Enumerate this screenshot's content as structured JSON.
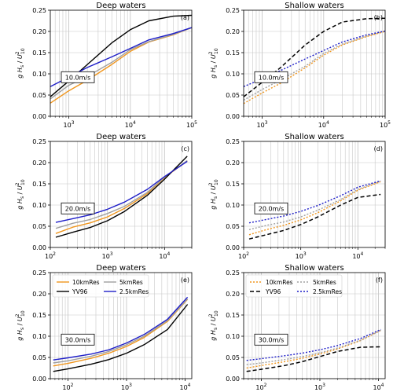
{
  "figure": {
    "legend_labels": {
      "res10": "10kmRes",
      "res5": "5kmRes",
      "yv96": "YV96",
      "res2_5": "2.5kmRes"
    },
    "colors": {
      "res10": "#f0961e",
      "res5": "#a0a0a0",
      "yv96": "#000000",
      "res2_5": "#1e1ec8",
      "grid": "#c8c8c8"
    }
  },
  "chart_data": [
    {
      "type": "line",
      "id": "a",
      "title": "Deep waters",
      "panel_label": "(a)",
      "annotation": "10.0m/s",
      "ylabel": "g H_s / U_10^2",
      "xlabel": "",
      "xscale": "log",
      "xlim": [
        500,
        100000
      ],
      "ylim": [
        0,
        0.25
      ],
      "yticks": [
        0,
        0.05,
        0.1,
        0.15,
        0.2,
        0.25
      ],
      "xticks": [
        1000,
        10000,
        100000
      ],
      "linestyle": "solid",
      "legend": false,
      "grid": true,
      "x": [
        500,
        1000,
        2000,
        5000,
        10000,
        20000,
        50000,
        100000
      ],
      "series": [
        {
          "name": "10kmRes",
          "key": "res10",
          "values": [
            0.031,
            0.06,
            0.085,
            0.122,
            0.153,
            0.175,
            0.192,
            0.209
          ]
        },
        {
          "name": "5kmRes",
          "key": "res5",
          "values": [
            0.041,
            0.073,
            0.094,
            0.127,
            0.157,
            0.176,
            0.193,
            0.209
          ]
        },
        {
          "name": "YV96",
          "key": "yv96",
          "values": [
            0.046,
            0.083,
            0.122,
            0.173,
            0.204,
            0.225,
            0.236,
            0.238
          ]
        },
        {
          "name": "2.5kmRes",
          "key": "res2_5",
          "values": [
            0.07,
            0.092,
            0.115,
            0.14,
            0.16,
            0.18,
            0.195,
            0.209
          ]
        }
      ]
    },
    {
      "type": "line",
      "id": "b",
      "title": "Shallow waters",
      "panel_label": "(b)",
      "annotation": "10.0m/s",
      "ylabel": "g H_s / U_10^2",
      "xlabel": "",
      "xscale": "log",
      "xlim": [
        500,
        100000
      ],
      "ylim": [
        0,
        0.25
      ],
      "yticks": [
        0,
        0.05,
        0.1,
        0.15,
        0.2,
        0.25
      ],
      "xticks": [
        1000,
        10000,
        100000
      ],
      "linestyle": "dashed",
      "legend": false,
      "grid": true,
      "x": [
        500,
        1000,
        2000,
        5000,
        10000,
        20000,
        50000,
        100000
      ],
      "series": [
        {
          "name": "10kmRes",
          "key": "res10",
          "values": [
            0.03,
            0.055,
            0.078,
            0.114,
            0.144,
            0.168,
            0.188,
            0.2
          ]
        },
        {
          "name": "5kmRes",
          "key": "res5",
          "values": [
            0.038,
            0.063,
            0.086,
            0.118,
            0.148,
            0.17,
            0.189,
            0.201
          ]
        },
        {
          "name": "YV96",
          "key": "yv96",
          "values": [
            0.046,
            0.08,
            0.115,
            0.168,
            0.2,
            0.222,
            0.23,
            0.231
          ]
        },
        {
          "name": "2.5kmRes",
          "key": "res2_5",
          "values": [
            0.07,
            0.088,
            0.108,
            0.135,
            0.155,
            0.175,
            0.192,
            0.201
          ]
        }
      ]
    },
    {
      "type": "line",
      "id": "c",
      "title": "Deep waters",
      "panel_label": "(c)",
      "annotation": "20.0m/s",
      "ylabel": "g H_s / U_10^2",
      "xlabel": "",
      "xscale": "log",
      "xlim": [
        100,
        30000
      ],
      "ylim": [
        0,
        0.25
      ],
      "yticks": [
        0,
        0.05,
        0.1,
        0.15,
        0.2,
        0.25
      ],
      "xticks": [
        100,
        1000,
        10000
      ],
      "linestyle": "solid",
      "legend": false,
      "grid": true,
      "x": [
        125,
        250,
        500,
        1000,
        2000,
        5000,
        10000,
        25000
      ],
      "series": [
        {
          "name": "10kmRes",
          "key": "res10",
          "values": [
            0.033,
            0.048,
            0.058,
            0.072,
            0.092,
            0.127,
            0.165,
            0.204
          ]
        },
        {
          "name": "5kmRes",
          "key": "res5",
          "values": [
            0.045,
            0.057,
            0.066,
            0.08,
            0.097,
            0.13,
            0.166,
            0.205
          ]
        },
        {
          "name": "YV96",
          "key": "yv96",
          "values": [
            0.024,
            0.036,
            0.047,
            0.063,
            0.085,
            0.123,
            0.161,
            0.215
          ]
        },
        {
          "name": "2.5kmRes",
          "key": "res2_5",
          "values": [
            0.059,
            0.068,
            0.077,
            0.09,
            0.107,
            0.137,
            0.167,
            0.203
          ]
        }
      ]
    },
    {
      "type": "line",
      "id": "d",
      "title": "Shallow waters",
      "panel_label": "(d)",
      "annotation": "20.0m/s",
      "ylabel": "g H_s / U_10^2",
      "xlabel": "",
      "xscale": "log",
      "xlim": [
        100,
        30000
      ],
      "ylim": [
        0,
        0.25
      ],
      "yticks": [
        0,
        0.05,
        0.1,
        0.15,
        0.2,
        0.25
      ],
      "xticks": [
        100,
        1000,
        10000
      ],
      "linestyle": "dashed",
      "legend": false,
      "grid": true,
      "x": [
        125,
        250,
        500,
        1000,
        2000,
        5000,
        10000,
        25000
      ],
      "series": [
        {
          "name": "10kmRes",
          "key": "res10",
          "values": [
            0.03,
            0.042,
            0.052,
            0.065,
            0.082,
            0.11,
            0.135,
            0.155
          ]
        },
        {
          "name": "5kmRes",
          "key": "res5",
          "values": [
            0.042,
            0.052,
            0.06,
            0.072,
            0.088,
            0.113,
            0.137,
            0.156
          ]
        },
        {
          "name": "YV96",
          "key": "yv96",
          "values": [
            0.02,
            0.03,
            0.04,
            0.054,
            0.072,
            0.1,
            0.118,
            0.125
          ]
        },
        {
          "name": "2.5kmRes",
          "key": "res2_5",
          "values": [
            0.058,
            0.066,
            0.074,
            0.085,
            0.099,
            0.122,
            0.142,
            0.157
          ]
        }
      ]
    },
    {
      "type": "line",
      "id": "e",
      "title": "Deep waters",
      "panel_label": "(e)",
      "annotation": "30.0m/s",
      "ylabel": "g H_s / U_10^2",
      "xlabel": "g Fetch / U_10^2",
      "xscale": "log",
      "xlim": [
        50,
        13000
      ],
      "ylim": [
        0,
        0.25
      ],
      "yticks": [
        0,
        0.05,
        0.1,
        0.15,
        0.2,
        0.25
      ],
      "xticks": [
        100,
        1000,
        10000
      ],
      "linestyle": "solid",
      "legend": true,
      "grid": true,
      "x": [
        56,
        100,
        250,
        500,
        1000,
        2000,
        5000,
        11000
      ],
      "series": [
        {
          "name": "10kmRes",
          "key": "res10",
          "values": [
            0.03,
            0.036,
            0.048,
            0.06,
            0.076,
            0.097,
            0.135,
            0.187
          ]
        },
        {
          "name": "5kmRes",
          "key": "res5",
          "values": [
            0.037,
            0.042,
            0.053,
            0.064,
            0.08,
            0.1,
            0.137,
            0.188
          ]
        },
        {
          "name": "YV96",
          "key": "yv96",
          "values": [
            0.017,
            0.023,
            0.034,
            0.045,
            0.06,
            0.08,
            0.116,
            0.175
          ]
        },
        {
          "name": "2.5kmRes",
          "key": "res2_5",
          "values": [
            0.044,
            0.049,
            0.058,
            0.068,
            0.084,
            0.104,
            0.14,
            0.192
          ]
        }
      ]
    },
    {
      "type": "line",
      "id": "f",
      "title": "Shallow waters",
      "panel_label": "(f)",
      "annotation": "30.0m/s",
      "ylabel": "g H_s / U_10^2",
      "xlabel": "g Fetch / U_10^2",
      "xscale": "log",
      "xlim": [
        50,
        13000
      ],
      "ylim": [
        0,
        0.25
      ],
      "yticks": [
        0,
        0.05,
        0.1,
        0.15,
        0.2,
        0.25
      ],
      "xticks": [
        100,
        1000,
        10000
      ],
      "linestyle": "dashed",
      "legend": true,
      "grid": true,
      "x": [
        56,
        100,
        250,
        500,
        1000,
        2000,
        5000,
        11000
      ],
      "series": [
        {
          "name": "10kmRes",
          "key": "res10",
          "values": [
            0.025,
            0.031,
            0.04,
            0.048,
            0.058,
            0.07,
            0.09,
            0.114
          ]
        },
        {
          "name": "5kmRes",
          "key": "res5",
          "values": [
            0.033,
            0.037,
            0.045,
            0.052,
            0.061,
            0.072,
            0.091,
            0.114
          ]
        },
        {
          "name": "YV96",
          "key": "yv96",
          "values": [
            0.017,
            0.022,
            0.031,
            0.04,
            0.052,
            0.064,
            0.074,
            0.075
          ]
        },
        {
          "name": "2.5kmRes",
          "key": "res2_5",
          "values": [
            0.043,
            0.047,
            0.054,
            0.06,
            0.068,
            0.078,
            0.095,
            0.116
          ]
        }
      ]
    }
  ]
}
